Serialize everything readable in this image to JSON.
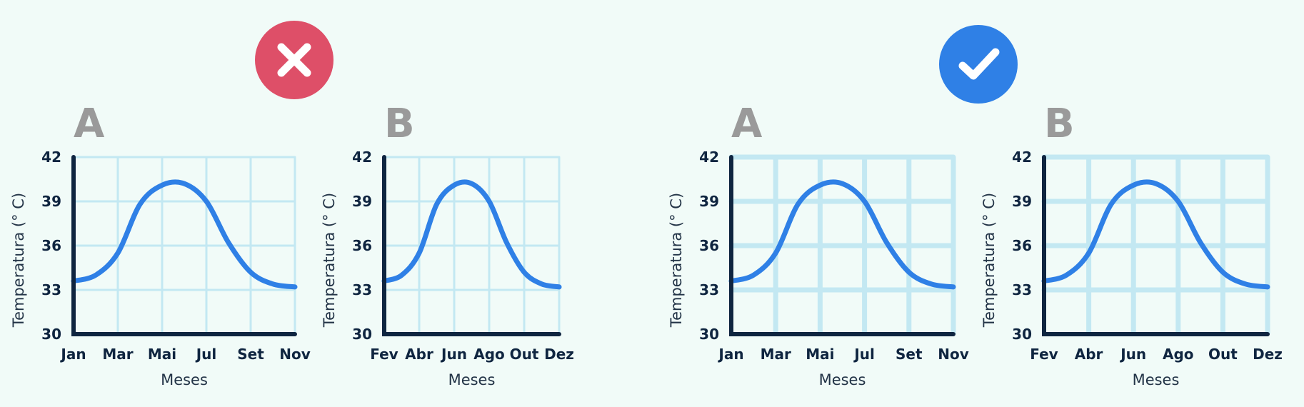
{
  "badges": [
    {
      "name": "wrong",
      "icon": "close-icon",
      "color": "#de4f68"
    },
    {
      "name": "right",
      "icon": "checkmark-icon",
      "color": "#2f80e6"
    }
  ],
  "colors": {
    "line": "#2f80e6",
    "axis": "#0f2540",
    "grid": "#c3e8f2",
    "letter": "#9a9a9a",
    "background": "#f1fbf8"
  },
  "chart_data": [
    {
      "type": "line",
      "panel_label": "A",
      "group": "wrong",
      "grid": "thin",
      "x_ticks": [
        "Jan",
        "Mar",
        "Mai",
        "Jul",
        "Set",
        "Nov"
      ],
      "xlabel": "Meses",
      "ylabel": "Temperatura (° C)",
      "ylim": [
        30,
        42
      ],
      "y_ticks": [
        30,
        33,
        36,
        39,
        42
      ],
      "series": [
        {
          "x": [
            0,
            0.5,
            1,
            1.5,
            2,
            2.5,
            3,
            3.5,
            4,
            4.5,
            5
          ],
          "y": [
            33.6,
            34.0,
            35.5,
            38.8,
            40.1,
            40.2,
            39.0,
            36.2,
            34.2,
            33.4,
            33.2
          ]
        }
      ]
    },
    {
      "type": "line",
      "panel_label": "B",
      "group": "wrong",
      "grid": "thin",
      "x_ticks": [
        "Fev",
        "Abr",
        "Jun",
        "Ago",
        "Out",
        "Dez"
      ],
      "xlabel": "Meses",
      "ylabel": "Temperatura (° C)",
      "ylim": [
        30,
        42
      ],
      "y_ticks": [
        30,
        33,
        36,
        39,
        42
      ],
      "series": [
        {
          "x": [
            0,
            0.5,
            1,
            1.5,
            2,
            2.5,
            3,
            3.5,
            4,
            4.5,
            5
          ],
          "y": [
            33.6,
            34.0,
            35.5,
            38.8,
            40.1,
            40.2,
            39.0,
            36.2,
            34.2,
            33.4,
            33.2
          ]
        }
      ]
    },
    {
      "type": "line",
      "panel_label": "A",
      "group": "right",
      "grid": "thick",
      "x_ticks": [
        "Jan",
        "Mar",
        "Mai",
        "Jul",
        "Set",
        "Nov"
      ],
      "xlabel": "Meses",
      "ylabel": "Temperatura (° C)",
      "ylim": [
        30,
        42
      ],
      "y_ticks": [
        30,
        33,
        36,
        39,
        42
      ],
      "series": [
        {
          "x": [
            0,
            0.5,
            1,
            1.5,
            2,
            2.5,
            3,
            3.5,
            4,
            4.5,
            5
          ],
          "y": [
            33.6,
            34.0,
            35.5,
            38.8,
            40.1,
            40.2,
            39.0,
            36.2,
            34.2,
            33.4,
            33.2
          ]
        }
      ]
    },
    {
      "type": "line",
      "panel_label": "B",
      "group": "right",
      "grid": "thick",
      "x_ticks": [
        "Fev",
        "Abr",
        "Jun",
        "Ago",
        "Out",
        "Dez"
      ],
      "xlabel": "Meses",
      "ylabel": "Temperatura (° C)",
      "ylim": [
        30,
        42
      ],
      "y_ticks": [
        30,
        33,
        36,
        39,
        42
      ],
      "series": [
        {
          "x": [
            0,
            0.5,
            1,
            1.5,
            2,
            2.5,
            3,
            3.5,
            4,
            4.5,
            5
          ],
          "y": [
            33.6,
            34.0,
            35.5,
            38.8,
            40.1,
            40.2,
            39.0,
            36.2,
            34.2,
            33.4,
            33.2
          ]
        }
      ]
    }
  ]
}
